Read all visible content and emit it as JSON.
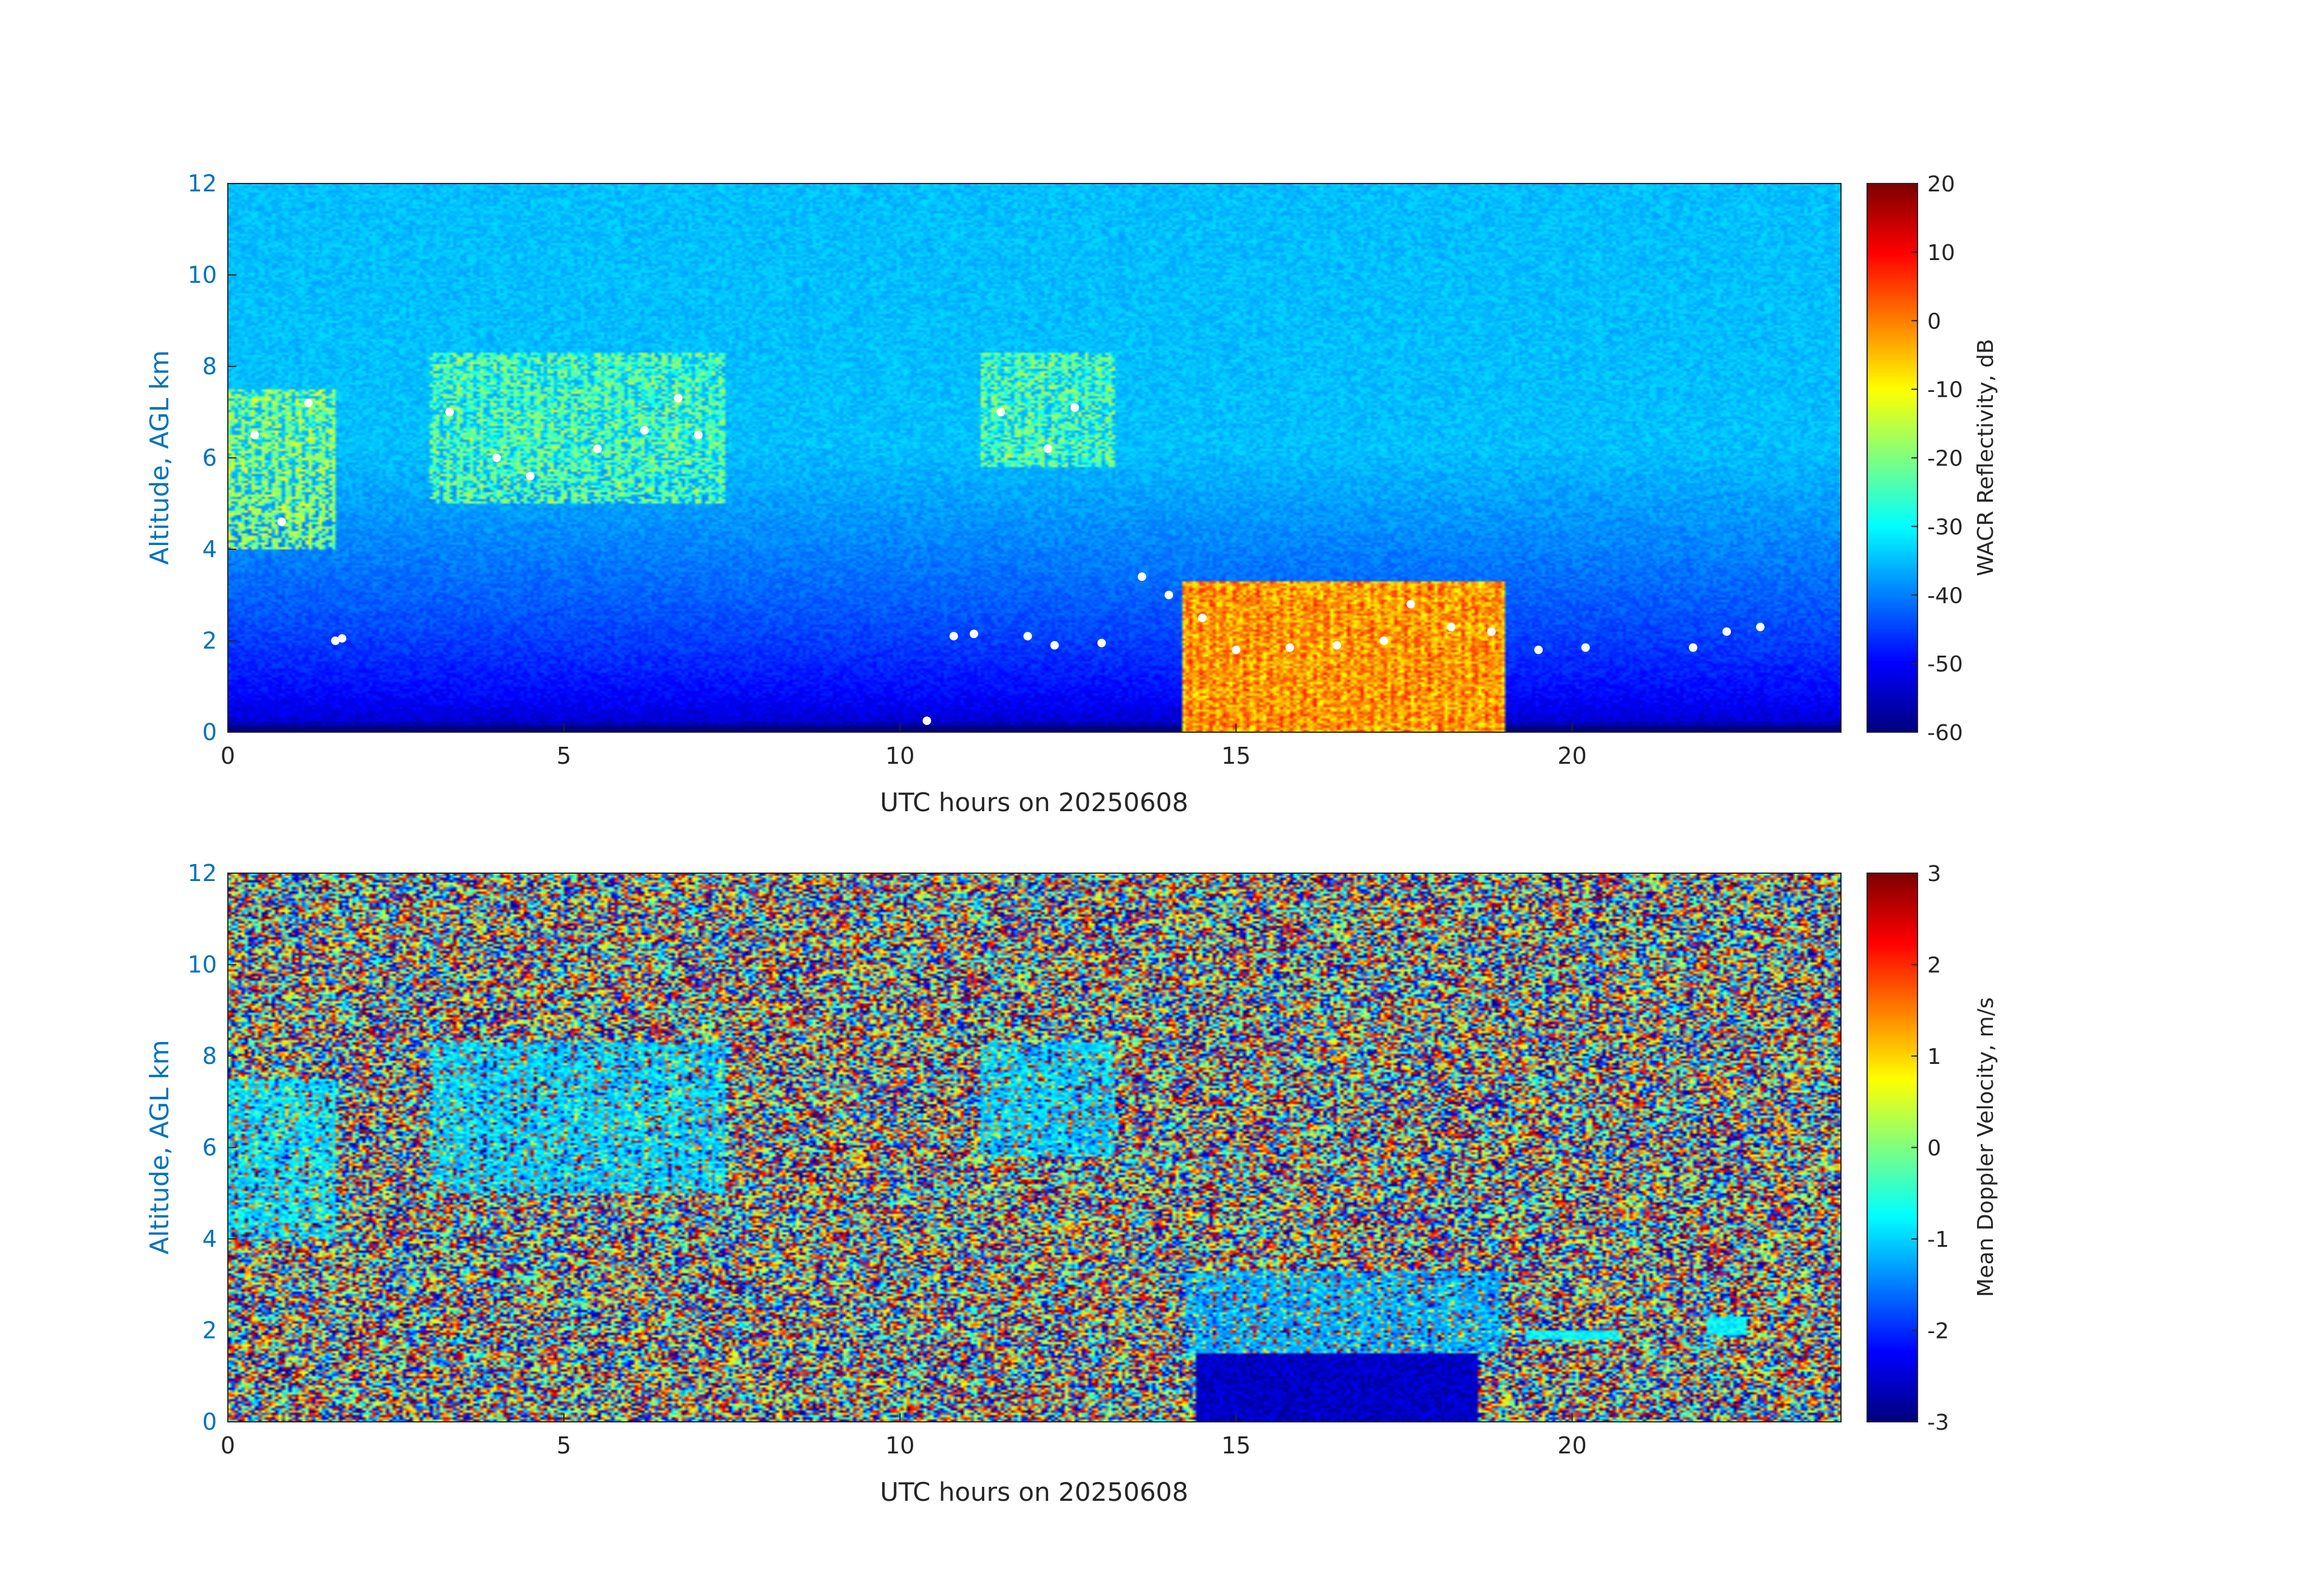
{
  "chart_data": [
    {
      "type": "heatmap",
      "xlabel": "UTC hours on 20250608",
      "ylabel": "Altitude, AGL km",
      "xlim": [
        0,
        24
      ],
      "ylim": [
        0,
        12
      ],
      "x_ticks": [
        0,
        5,
        10,
        15,
        20
      ],
      "y_ticks": [
        0,
        2,
        4,
        6,
        8,
        10,
        12
      ],
      "colorbar": {
        "label": "WACR Reflectivity, dB",
        "range": [
          -60,
          20
        ],
        "ticks": [
          20,
          10,
          0,
          -10,
          -20,
          -30,
          -40,
          -50,
          -60
        ],
        "colormap": "jet"
      },
      "background": {
        "description_level_db": -35,
        "near_surface_db": -55
      },
      "cloud_regions": [
        {
          "x": [
            0.0,
            1.6
          ],
          "y": [
            4.0,
            7.5
          ],
          "value_db": -18
        },
        {
          "x": [
            3.0,
            7.4
          ],
          "y": [
            5.0,
            8.3
          ],
          "value_db": -22
        },
        {
          "x": [
            11.2,
            13.2
          ],
          "y": [
            5.8,
            8.3
          ],
          "value_db": -22
        },
        {
          "x": [
            14.2,
            19.0
          ],
          "y": [
            0.0,
            3.3
          ],
          "value_db": -5
        }
      ],
      "ceilometer_points": [
        {
          "x": 0.4,
          "y": 6.5
        },
        {
          "x": 0.8,
          "y": 4.6
        },
        {
          "x": 1.2,
          "y": 7.2
        },
        {
          "x": 1.6,
          "y": 2.0
        },
        {
          "x": 1.7,
          "y": 2.05
        },
        {
          "x": 3.3,
          "y": 7.0
        },
        {
          "x": 4.0,
          "y": 6.0
        },
        {
          "x": 4.5,
          "y": 5.6
        },
        {
          "x": 5.5,
          "y": 6.2
        },
        {
          "x": 6.2,
          "y": 6.6
        },
        {
          "x": 6.7,
          "y": 7.3
        },
        {
          "x": 7.0,
          "y": 6.5
        },
        {
          "x": 10.8,
          "y": 2.1
        },
        {
          "x": 11.1,
          "y": 2.15
        },
        {
          "x": 11.9,
          "y": 2.1
        },
        {
          "x": 12.3,
          "y": 1.9
        },
        {
          "x": 13.0,
          "y": 1.95
        },
        {
          "x": 11.5,
          "y": 7.0
        },
        {
          "x": 12.2,
          "y": 6.2
        },
        {
          "x": 12.6,
          "y": 7.1
        },
        {
          "x": 13.6,
          "y": 3.4
        },
        {
          "x": 14.0,
          "y": 3.0
        },
        {
          "x": 14.5,
          "y": 2.5
        },
        {
          "x": 15.0,
          "y": 1.8
        },
        {
          "x": 15.8,
          "y": 1.85
        },
        {
          "x": 16.5,
          "y": 1.9
        },
        {
          "x": 17.2,
          "y": 2.0
        },
        {
          "x": 17.6,
          "y": 2.8
        },
        {
          "x": 18.2,
          "y": 2.3
        },
        {
          "x": 18.8,
          "y": 2.2
        },
        {
          "x": 19.5,
          "y": 1.8
        },
        {
          "x": 20.2,
          "y": 1.85
        },
        {
          "x": 21.8,
          "y": 1.85
        },
        {
          "x": 22.3,
          "y": 2.2
        },
        {
          "x": 22.8,
          "y": 2.3
        },
        {
          "x": 10.4,
          "y": 0.25
        }
      ]
    },
    {
      "type": "heatmap",
      "xlabel": "UTC hours on 20250608",
      "ylabel": "Altitude, AGL km",
      "xlim": [
        0,
        24
      ],
      "ylim": [
        0,
        12
      ],
      "x_ticks": [
        0,
        5,
        10,
        15,
        20
      ],
      "y_ticks": [
        0,
        2,
        4,
        6,
        8,
        10,
        12
      ],
      "colorbar": {
        "label": "Mean Doppler Velocity, m/s",
        "range": [
          -3,
          3
        ],
        "ticks": [
          3,
          2,
          1,
          0,
          -1,
          -2,
          -3
        ],
        "colormap": "jet"
      },
      "background": "random noise spanning -3 to 3",
      "cloud_regions": [
        {
          "x": [
            0.0,
            1.6
          ],
          "y": [
            4.0,
            7.5
          ],
          "value_ms": -0.9
        },
        {
          "x": [
            3.0,
            7.4
          ],
          "y": [
            5.0,
            8.3
          ],
          "value_ms": -1.0
        },
        {
          "x": [
            11.2,
            13.2
          ],
          "y": [
            5.8,
            8.3
          ],
          "value_ms": -1.0
        },
        {
          "x": [
            14.2,
            19.0
          ],
          "y": [
            1.5,
            3.3
          ],
          "value_ms": -1.2
        },
        {
          "x": [
            14.4,
            18.6
          ],
          "y": [
            0.0,
            1.5
          ],
          "value_ms": -2.6
        },
        {
          "x": [
            19.3,
            20.7
          ],
          "y": [
            1.8,
            2.0
          ],
          "value_ms": -0.8
        },
        {
          "x": [
            22.0,
            22.6
          ],
          "y": [
            1.9,
            2.3
          ],
          "value_ms": -0.8
        }
      ]
    }
  ]
}
